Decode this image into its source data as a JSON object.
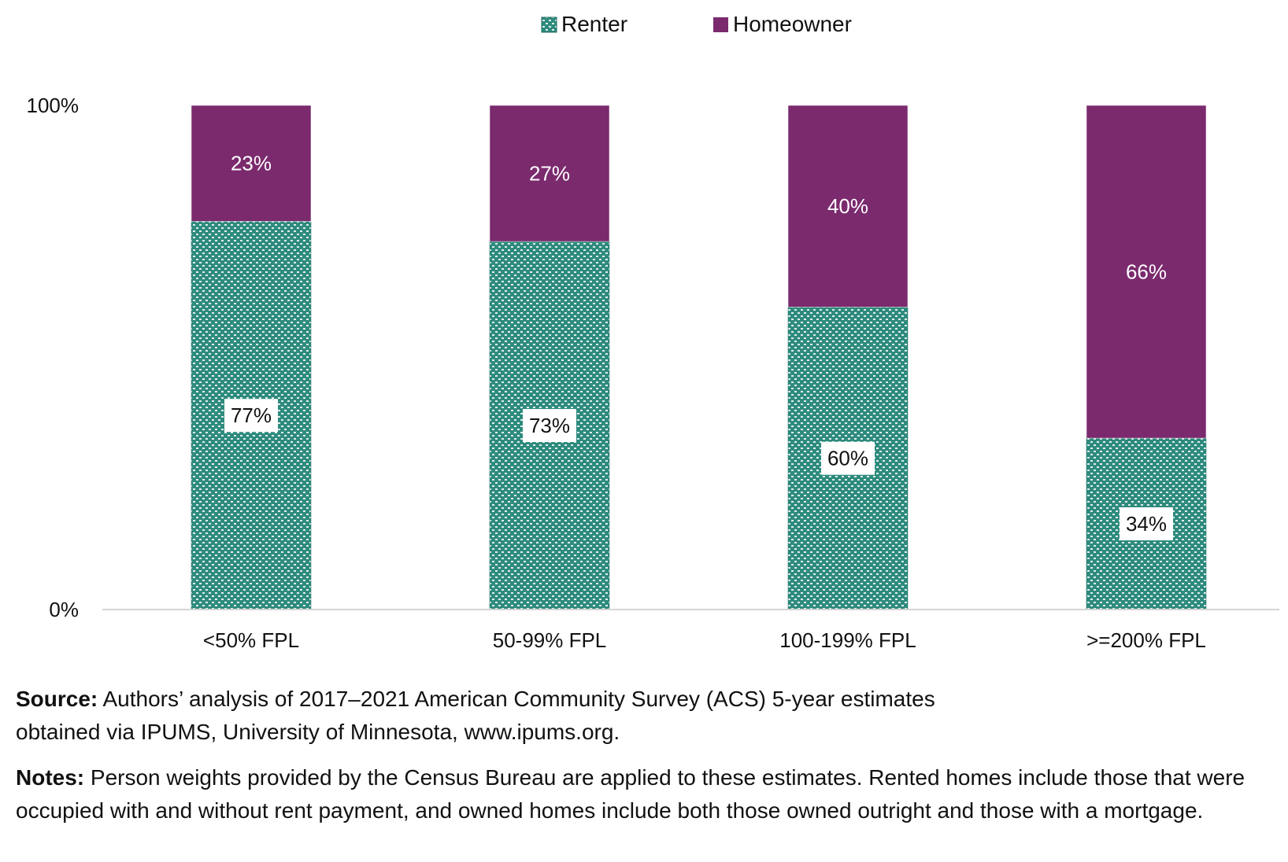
{
  "chart_data": {
    "type": "bar",
    "stacked": true,
    "categories": [
      "<50% FPL",
      "50-99% FPL",
      "100-199% FPL",
      ">=200% FPL"
    ],
    "series": [
      {
        "name": "Renter",
        "values": [
          77,
          73,
          60,
          34
        ],
        "labels": [
          "77%",
          "73%",
          "60%",
          "34%"
        ],
        "color": "#2e8b7d",
        "pattern": "dotted-teal"
      },
      {
        "name": "Homeowner",
        "values": [
          23,
          27,
          40,
          66
        ],
        "labels": [
          "23%",
          "27%",
          "40%",
          "66%"
        ],
        "color": "#7b2a6e"
      }
    ],
    "y_ticks": [
      {
        "value": 0,
        "label": "0%"
      },
      {
        "value": 100,
        "label": "100%"
      }
    ],
    "ylim": [
      0,
      100
    ],
    "grid": false,
    "legend_position": "top-center"
  },
  "notes": {
    "source_label": "Source:",
    "source_text": "Authors’ analysis of 2017–2021 American Community Survey (ACS) 5-year estimates obtained via IPUMS, University of Minnesota, www.ipums.org.",
    "notes_label": "Notes:",
    "notes_text": "Person weights provided by the Census Bureau are applied to these estimates. Rented homes include those that were occupied with and without rent payment, and owned homes include both those owned outright and those with a mortgage."
  }
}
